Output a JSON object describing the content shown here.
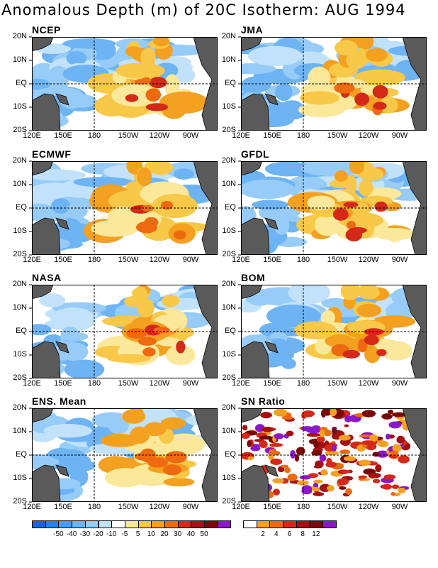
{
  "title": "Anomalous Depth (m) of 20C Isotherm: AUG 1994",
  "lat_labels": [
    "20N",
    "10N",
    "EQ",
    "10S",
    "20S"
  ],
  "lon_labels": [
    "120E",
    "150E",
    "180",
    "150W",
    "120W",
    "90W"
  ],
  "panels": [
    {
      "label": "NCEP",
      "kind": "anom"
    },
    {
      "label": "JMA",
      "kind": "anom"
    },
    {
      "label": "ECMWF",
      "kind": "anom"
    },
    {
      "label": "GFDL",
      "kind": "anom"
    },
    {
      "label": "NASA",
      "kind": "anom"
    },
    {
      "label": "BOM",
      "kind": "anom"
    },
    {
      "label": "ENS. Mean",
      "kind": "anom"
    },
    {
      "label": "SN Ratio",
      "kind": "snr"
    }
  ],
  "legend_anom": {
    "colors": [
      "#1a64d6",
      "#2a82e8",
      "#4a9af0",
      "#6eb4f5",
      "#98ccf8",
      "#c2e2fb",
      "#ffffff",
      "#fbe89a",
      "#f8c848",
      "#f4a020",
      "#ee6a10",
      "#d42818",
      "#a41010",
      "#7a0808",
      "#8a18c8"
    ],
    "labels": [
      "-50",
      "-40",
      "-30",
      "-20",
      "-10",
      "-5",
      "5",
      "10",
      "20",
      "30",
      "40",
      "50"
    ]
  },
  "legend_snr": {
    "colors": [
      "#ffffff",
      "#f4a020",
      "#ee6a10",
      "#d42818",
      "#a41010",
      "#7a0808",
      "#8a18c8"
    ],
    "labels": [
      "2",
      "4",
      "6",
      "8",
      "12"
    ]
  },
  "colors": {
    "land": "#5a5a5a"
  }
}
